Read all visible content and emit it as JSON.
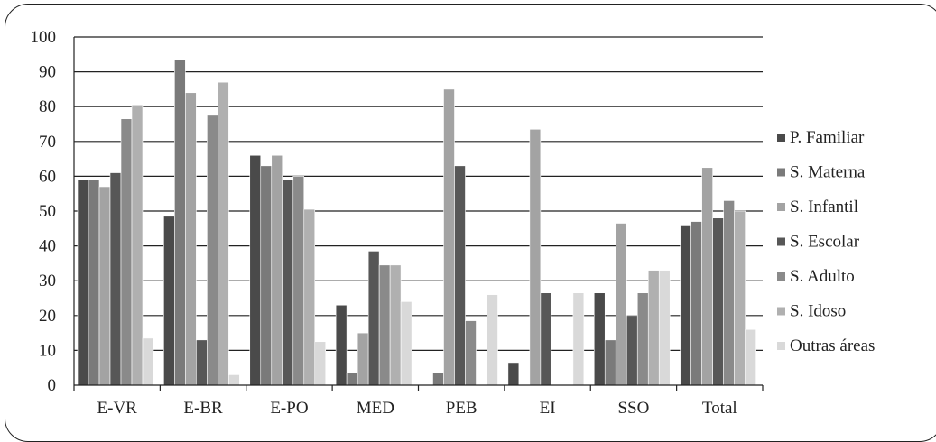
{
  "chart_data": {
    "type": "bar",
    "title": "",
    "xlabel": "",
    "ylabel": "",
    "ylim": [
      0,
      100
    ],
    "yticks": [
      0,
      10,
      20,
      30,
      40,
      50,
      60,
      70,
      80,
      90,
      100
    ],
    "grid": "horizontal",
    "legend_position": "right",
    "categories": [
      "E-VR",
      "E-BR",
      "E-PO",
      "MED",
      "PEB",
      "EI",
      "SSO",
      "Total"
    ],
    "series": [
      {
        "name": "P. Familiar",
        "color": "#4a4a4a",
        "values": [
          59,
          48.5,
          66,
          23,
          0,
          6.5,
          26.5,
          46
        ]
      },
      {
        "name": "S. Materna",
        "color": "#7a7a7a",
        "values": [
          59,
          93.5,
          63,
          3.5,
          3.5,
          0,
          13,
          47
        ]
      },
      {
        "name": "S. Infantil",
        "color": "#a3a3a3",
        "values": [
          57,
          84,
          66,
          15,
          85,
          73.5,
          46.5,
          62.5
        ]
      },
      {
        "name": "S. Escolar",
        "color": "#575757",
        "values": [
          61,
          13,
          59,
          38.5,
          63,
          26.5,
          20,
          48
        ]
      },
      {
        "name": "S. Adulto",
        "color": "#8a8a8a",
        "values": [
          76.5,
          77.5,
          60,
          34.5,
          18.5,
          0,
          26.5,
          53
        ]
      },
      {
        "name": "S. Idoso",
        "color": "#b0b0b0",
        "values": [
          80.5,
          87,
          50.5,
          34.5,
          0,
          0,
          33,
          50
        ]
      },
      {
        "name": "Outras áreas",
        "color": "#d9d9d9",
        "values": [
          13.5,
          3,
          12.5,
          24,
          26,
          26.5,
          33,
          16
        ]
      }
    ]
  }
}
